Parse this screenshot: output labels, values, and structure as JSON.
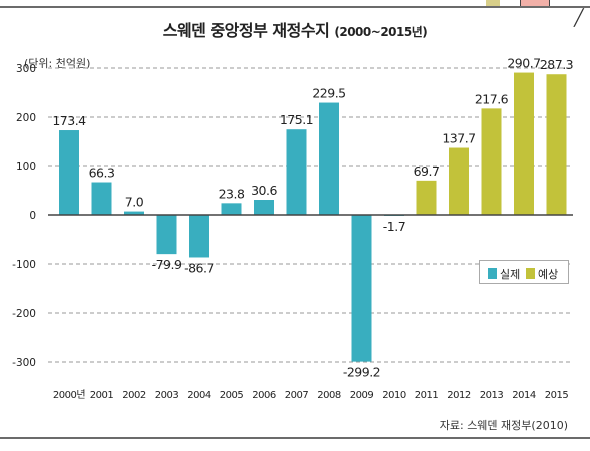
{
  "header": {
    "title": "스웨덴 중앙정부 재정수지",
    "title_range": "(2000~2015년)"
  },
  "unit_label": "(단위: 천억원)",
  "source": "자료: 스웨덴 재정부(2010)",
  "legend": {
    "actual": "실제",
    "forecast": "예상"
  },
  "colors": {
    "actual": "#39aebf",
    "forecast": "#c2c23a",
    "grid": "#9a9a9a"
  },
  "chart_data": {
    "type": "bar",
    "title": "스웨덴 중앙정부 재정수지 (2000~2015년)",
    "ylabel": "(단위: 천억원)",
    "ylim": [
      -300,
      300
    ],
    "yticks": [
      300,
      200,
      100,
      0,
      -100,
      -200,
      -300
    ],
    "grid": true,
    "legend_position": "right",
    "categories": [
      "2000년",
      "2001",
      "2002",
      "2003",
      "2004",
      "2005",
      "2006",
      "2007",
      "2008",
      "2009",
      "2010",
      "2011",
      "2012",
      "2013",
      "2014",
      "2015"
    ],
    "series": [
      {
        "name": "실제",
        "values": [
          173.4,
          66.3,
          7.0,
          -79.9,
          -86.7,
          23.8,
          30.6,
          175.1,
          229.5,
          -299.2,
          -1.7,
          null,
          null,
          null,
          null,
          null
        ]
      },
      {
        "name": "예상",
        "values": [
          null,
          null,
          null,
          null,
          null,
          null,
          null,
          null,
          null,
          null,
          null,
          69.7,
          137.7,
          217.6,
          290.7,
          287.3
        ]
      }
    ],
    "data_labels": [
      "173.4",
      "66.3",
      "7.0",
      "-79.9",
      "-86.7",
      "23.8",
      "30.6",
      "175.1",
      "229.5",
      "-299.2",
      "-1.7",
      "69.7",
      "137.7",
      "217.6",
      "290.7",
      "287.3"
    ]
  }
}
